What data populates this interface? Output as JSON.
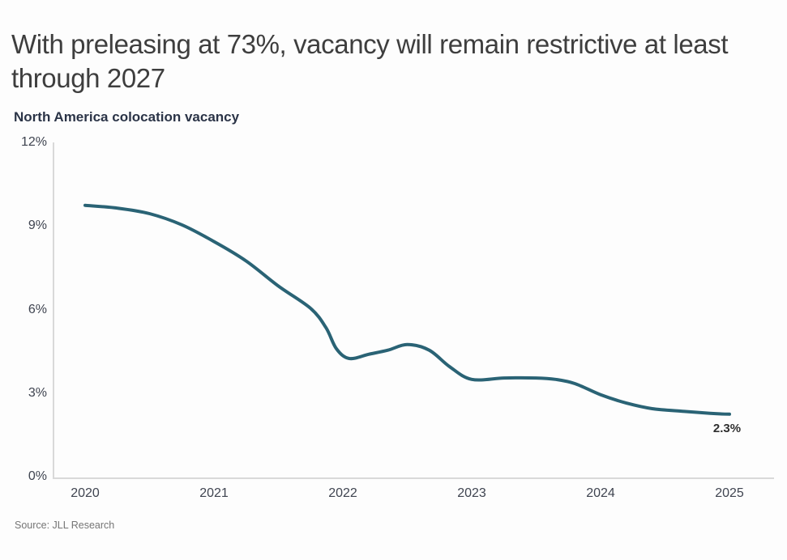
{
  "header": {
    "title": "With preleasing at 73%, vacancy will remain restrictive at least through 2027"
  },
  "footer": {
    "source": "Source: JLL Research"
  },
  "colors": {
    "line": "#2a6375",
    "axis": "#d9d9d9",
    "title_text": "#3e3e3e",
    "subtitle_text": "#2b3447",
    "tick_text": "#3f4450",
    "end_label_text": "#2f2f2f",
    "source_text": "#757575",
    "background": "#fdfdfd"
  },
  "chart_data": {
    "type": "line",
    "title": "North America colocation vacancy",
    "series_name": "North America colocation vacancy",
    "xlabel": "",
    "ylabel": "",
    "x": [
      2020,
      2020.25,
      2020.5,
      2020.75,
      2021,
      2021.25,
      2021.5,
      2021.75,
      2021.87,
      2021.95,
      2022.05,
      2022.2,
      2022.35,
      2022.5,
      2022.67,
      2022.83,
      2023,
      2023.25,
      2023.5,
      2023.65,
      2023.8,
      2024,
      2024.2,
      2024.4,
      2024.65,
      2024.85,
      2025
    ],
    "values": [
      9.8,
      9.7,
      9.5,
      9.1,
      8.5,
      7.8,
      6.9,
      6.1,
      5.4,
      4.65,
      4.3,
      4.45,
      4.6,
      4.8,
      4.6,
      4.0,
      3.55,
      3.6,
      3.6,
      3.55,
      3.4,
      3.0,
      2.7,
      2.5,
      2.4,
      2.33,
      2.3
    ],
    "annual_values": {
      "2020": 9.8,
      "2021": 8.5,
      "2022": 4.3,
      "2023": 3.55,
      "2024": 3.0,
      "2025": 2.3
    },
    "xticks": {
      "values": [
        2020,
        2021,
        2022,
        2023,
        2024,
        2025
      ],
      "labels": [
        "2020",
        "2021",
        "2022",
        "2023",
        "2024",
        "2025"
      ]
    },
    "yticks": {
      "values": [
        0,
        3,
        6,
        9,
        12
      ],
      "labels": [
        "0%",
        "3%",
        "6%",
        "9%",
        "12%"
      ]
    },
    "xlim": [
      2019.75,
      2025.35
    ],
    "ylim": [
      0,
      12
    ],
    "grid": false,
    "legend": false,
    "end_label": {
      "text": "2.3%",
      "x": 2025,
      "y": 2.3
    }
  }
}
